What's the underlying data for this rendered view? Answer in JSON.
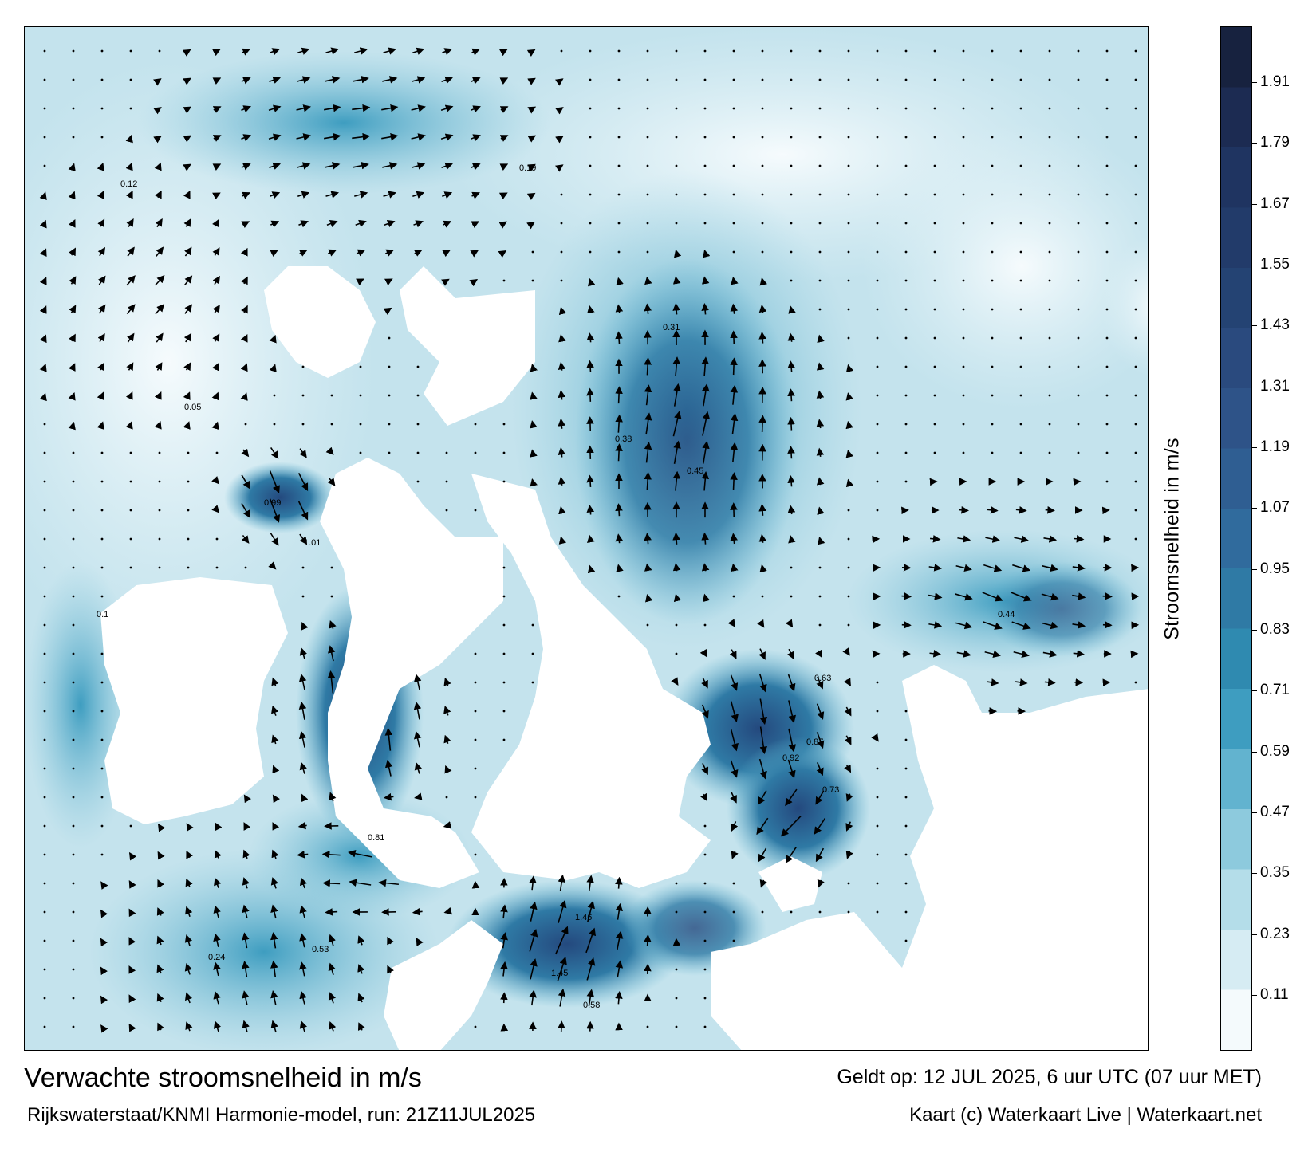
{
  "map": {
    "variable": "Stroomsnelheid in m/s",
    "colors": {
      "land": "#ffffff",
      "arrow": "#000000",
      "frame": "#000000"
    },
    "colorbar": {
      "label": "Stroomsnelheid in m/s",
      "ticks": [
        "0.11",
        "0.23",
        "0.35",
        "0.47",
        "0.59",
        "0.71",
        "0.83",
        "0.95",
        "1.07",
        "1.19",
        "1.31",
        "1.43",
        "1.55",
        "1.67",
        "1.79",
        "1.91"
      ],
      "color_steps": [
        "#f4fafc",
        "#d6ecf3",
        "#b4dde9",
        "#8dcadd",
        "#62b3cf",
        "#3e9dc0",
        "#2f8ab0",
        "#2f7aa5",
        "#306b9d",
        "#2f5e92",
        "#2e5388",
        "#2a4a7e",
        "#244373",
        "#223b6a",
        "#1f3461",
        "#1c2b52",
        "#17223f"
      ]
    },
    "sample_labels": [
      {
        "text": "0.99"
      },
      {
        "text": "1.01"
      },
      {
        "text": "1.46"
      },
      {
        "text": "1.45"
      },
      {
        "text": "0.81"
      },
      {
        "text": "0.53"
      },
      {
        "text": "0.45"
      },
      {
        "text": "0.38"
      },
      {
        "text": "0.58"
      },
      {
        "text": "0.24"
      },
      {
        "text": "0.12"
      },
      {
        "text": "0.05"
      },
      {
        "text": "0.92"
      },
      {
        "text": "0.87"
      },
      {
        "text": "0.63"
      },
      {
        "text": "0.31"
      },
      {
        "text": "0.73"
      },
      {
        "text": "0.44"
      },
      {
        "text": "0.19"
      },
      {
        "text": "0.1"
      }
    ]
  },
  "footer": {
    "title": "Verwachte stroomsnelheid in m/s",
    "model": "Rijkswaterstaat/KNMI Harmonie-model, run: 21Z11JUL2025",
    "valid": "Geldt op: 12 JUL 2025, 6 uur UTC (07 uur MET)",
    "credit": "Kaart (c) Waterkaart Live | Waterkaart.net"
  }
}
